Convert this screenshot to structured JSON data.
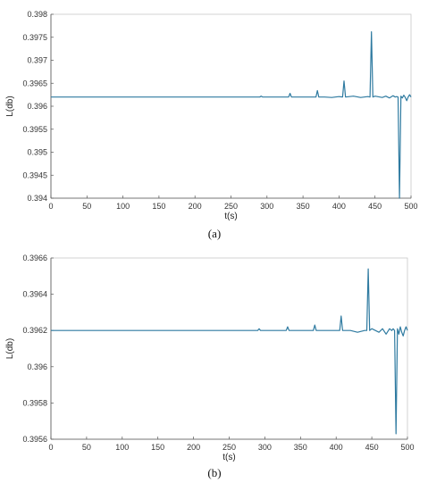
{
  "figure": {
    "captions": [
      "(a)",
      "(b)"
    ]
  },
  "chart_data": [
    {
      "type": "line",
      "caption": "(a)",
      "xlabel": "t(s)",
      "ylabel": "L(db)",
      "xlim": [
        0,
        500
      ],
      "ylim": [
        0.394,
        0.398
      ],
      "xticks": [
        0,
        50,
        100,
        150,
        200,
        250,
        300,
        350,
        400,
        450,
        500
      ],
      "yticks": [
        0.394,
        0.3945,
        0.395,
        0.3955,
        0.396,
        0.3965,
        0.397,
        0.3975,
        0.398
      ],
      "ytick_labels": [
        "0.394",
        "0.3945",
        "0.395",
        "0.3955",
        "0.396",
        "0.3965",
        "0.397",
        "0.3975",
        "0.398"
      ],
      "grid": false,
      "color": "#2e7aa0",
      "series": [
        {
          "x": [
            0,
            100,
            200,
            290,
            292,
            294,
            320,
            330,
            332,
            334,
            360,
            368,
            370,
            372,
            380,
            390,
            400,
            405,
            407,
            409,
            420,
            430,
            440,
            443,
            445,
            447,
            450,
            460,
            465,
            470,
            475,
            478,
            480,
            482,
            484,
            486,
            488,
            490,
            492,
            494,
            496,
            498,
            500
          ],
          "y": [
            0.3962,
            0.3962,
            0.3962,
            0.3962,
            0.39622,
            0.3962,
            0.3962,
            0.3962,
            0.39628,
            0.3962,
            0.3962,
            0.3962,
            0.39634,
            0.3962,
            0.3962,
            0.39619,
            0.39621,
            0.3962,
            0.39655,
            0.3962,
            0.39622,
            0.39619,
            0.39621,
            0.3962,
            0.39762,
            0.3962,
            0.39622,
            0.39619,
            0.39622,
            0.39618,
            0.39623,
            0.3962,
            0.39621,
            0.3962,
            0.394,
            0.39622,
            0.39618,
            0.39624,
            0.39619,
            0.39612,
            0.3962,
            0.39625,
            0.3962
          ]
        }
      ]
    },
    {
      "type": "line",
      "caption": "(b)",
      "xlabel": "t(s)",
      "ylabel": "L(db)",
      "xlim": [
        0,
        500
      ],
      "ylim": [
        0.3956,
        0.3966
      ],
      "xticks": [
        0,
        50,
        100,
        150,
        200,
        250,
        300,
        350,
        400,
        450,
        500
      ],
      "yticks": [
        0.3956,
        0.3958,
        0.396,
        0.3962,
        0.3964,
        0.3966
      ],
      "ytick_labels": [
        "0.3956",
        "0.3958",
        "0.396",
        "0.3962",
        "0.3964",
        "0.3966"
      ],
      "grid": false,
      "color": "#2e7aa0",
      "series": [
        {
          "x": [
            0,
            100,
            200,
            290,
            292,
            294,
            320,
            330,
            332,
            334,
            360,
            368,
            370,
            372,
            380,
            390,
            400,
            405,
            407,
            409,
            420,
            430,
            440,
            443,
            445,
            447,
            450,
            460,
            465,
            470,
            475,
            478,
            480,
            482,
            484,
            486,
            488,
            490,
            492,
            494,
            496,
            498,
            500
          ],
          "y": [
            0.3962,
            0.3962,
            0.3962,
            0.3962,
            0.39621,
            0.3962,
            0.3962,
            0.3962,
            0.39622,
            0.3962,
            0.3962,
            0.3962,
            0.39623,
            0.3962,
            0.3962,
            0.3962,
            0.3962,
            0.3962,
            0.39628,
            0.3962,
            0.3962,
            0.39619,
            0.3962,
            0.3962,
            0.39654,
            0.3962,
            0.39621,
            0.39619,
            0.39621,
            0.39618,
            0.39621,
            0.3962,
            0.39621,
            0.3962,
            0.39563,
            0.39621,
            0.39618,
            0.39622,
            0.39619,
            0.39617,
            0.3962,
            0.39622,
            0.3962
          ]
        }
      ]
    }
  ]
}
